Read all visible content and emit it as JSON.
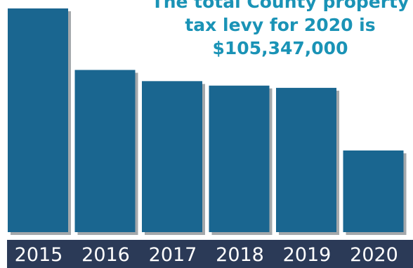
{
  "chart_data": {
    "type": "bar",
    "categories": [
      "2015",
      "2016",
      "2017",
      "2018",
      "2019",
      "2020"
    ],
    "values": [
      100,
      72.5,
      67.5,
      65.5,
      64.5,
      36.5
    ],
    "ylim": [
      0,
      100
    ],
    "grid": false,
    "bar_color": "#1a6690",
    "bar_shadow_color": "#a4a8ab",
    "axis_band_color": "#2b3a57",
    "tick_label_color": "#ffffff",
    "annotation": {
      "lines": [
        "The total County property",
        "tax levy for 2020 is",
        "$105,347,000"
      ],
      "color": "#1a93b6"
    }
  }
}
